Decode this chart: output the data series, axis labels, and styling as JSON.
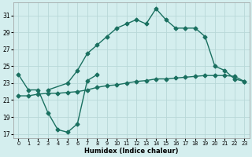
{
  "xlabel": "Humidex (Indice chaleur)",
  "bg_color": "#d4eeee",
  "grid_color": "#b8d8d8",
  "line_color": "#1a7060",
  "xlim": [
    -0.5,
    23.5
  ],
  "ylim": [
    16.5,
    32.5
  ],
  "xticks": [
    0,
    1,
    2,
    3,
    4,
    5,
    6,
    7,
    8,
    9,
    10,
    11,
    12,
    13,
    14,
    15,
    16,
    17,
    18,
    19,
    20,
    21,
    22,
    23
  ],
  "yticks": [
    17,
    19,
    21,
    23,
    25,
    27,
    29,
    31
  ],
  "line1_x": [
    0,
    1,
    2,
    3,
    4,
    5,
    6,
    7,
    8
  ],
  "line1_y": [
    24.0,
    22.2,
    22.2,
    19.5,
    17.5,
    17.2,
    18.2,
    23.3,
    24.0
  ],
  "line2_x": [
    3,
    5,
    6,
    7,
    8,
    9,
    10,
    11,
    12,
    13,
    14,
    15,
    16,
    17,
    18,
    19,
    20,
    21,
    22,
    23
  ],
  "line2_y": [
    22.2,
    23.0,
    24.5,
    26.5,
    27.5,
    28.5,
    29.5,
    30.0,
    30.5,
    30.0,
    31.8,
    30.5,
    29.5,
    29.5,
    29.5,
    28.5,
    25.0,
    24.5,
    23.5,
    23.2
  ],
  "line3_x": [
    0,
    1,
    2,
    3,
    4,
    5,
    6,
    7,
    8,
    9,
    10,
    11,
    12,
    13,
    14,
    15,
    16,
    17,
    18,
    19,
    20,
    21,
    22,
    23
  ],
  "line3_y": [
    21.5,
    21.5,
    21.7,
    21.8,
    21.8,
    21.9,
    22.0,
    22.2,
    22.5,
    22.7,
    22.8,
    23.0,
    23.2,
    23.3,
    23.5,
    23.5,
    23.6,
    23.7,
    23.8,
    23.9,
    23.9,
    23.9,
    23.8,
    23.2
  ]
}
